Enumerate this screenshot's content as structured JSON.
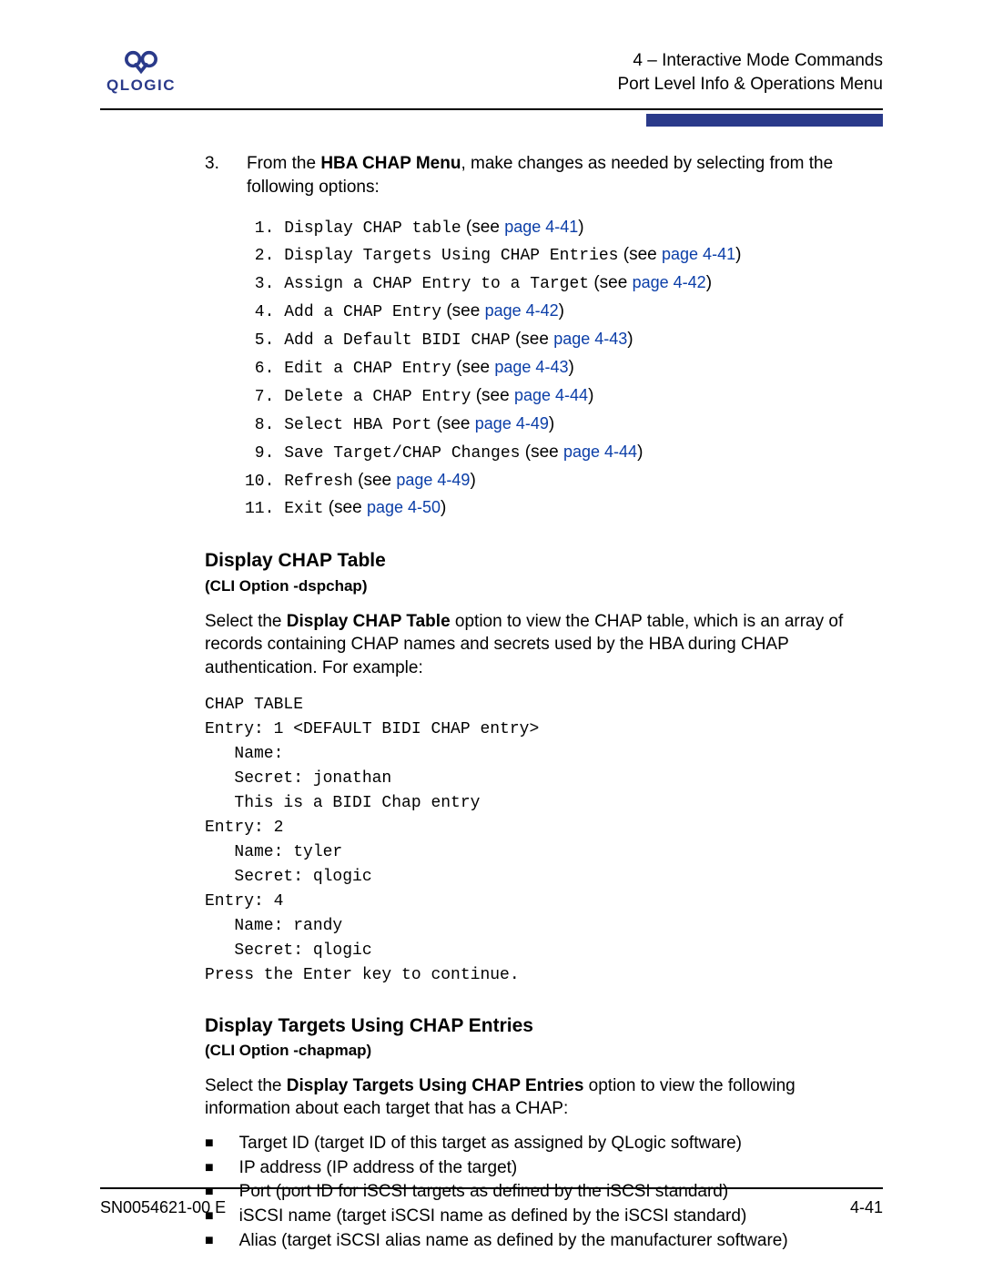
{
  "colors": {
    "brand": "#2a3a8a",
    "link": "#0b3ea8",
    "text": "#000000",
    "bg": "#ffffff"
  },
  "logo": {
    "text": "QLOGIC"
  },
  "header": {
    "line1": "4 – Interactive Mode Commands",
    "line2": "Port Level Info & Operations Menu"
  },
  "step": {
    "number": "3.",
    "text_pre": "From the ",
    "bold": "HBA CHAP Menu",
    "text_post": ", make changes as needed by selecting from the following options:"
  },
  "menu_items": [
    {
      "num": " 1.",
      "label": "Display CHAP table",
      "see": " (see ",
      "page": "page 4-41",
      "close": ")"
    },
    {
      "num": " 2.",
      "label": "Display Targets Using CHAP Entries",
      "see": " (see ",
      "page": "page 4-41",
      "close": ")"
    },
    {
      "num": " 3.",
      "label": "Assign a CHAP Entry to a Target",
      "see": " (see ",
      "page": "page 4-42",
      "close": ")"
    },
    {
      "num": " 4.",
      "label": "Add a CHAP Entry",
      "see": " (see ",
      "page": "page 4-42",
      "close": ")"
    },
    {
      "num": " 5.",
      "label": "Add a Default BIDI CHAP",
      "see": " (see ",
      "page": "page 4-43",
      "close": ")"
    },
    {
      "num": " 6.",
      "label": "Edit a CHAP Entry",
      "see": " (see ",
      "page": "page 4-43",
      "close": ")"
    },
    {
      "num": " 7.",
      "label": "Delete a CHAP Entry",
      "see": " (see ",
      "page": "page 4-44",
      "close": ")"
    },
    {
      "num": " 8.",
      "label": "Select HBA Port",
      "see": " (see ",
      "page": "page 4-49",
      "close": ")"
    },
    {
      "num": " 9.",
      "label": "Save Target/CHAP Changes",
      "see": " (see ",
      "page": "page 4-44",
      "close": ")"
    },
    {
      "num": "10.",
      "label": "Refresh",
      "see": " (see ",
      "page": "page 4-49",
      "close": ")"
    },
    {
      "num": "11.",
      "label": "Exit",
      "see": " (see ",
      "page": "page 4-50",
      "close": ")"
    }
  ],
  "section1": {
    "title": "Display CHAP Table",
    "subtitle": "(CLI Option -dspchap)",
    "para_pre": "Select the ",
    "para_bold": "Display CHAP Table",
    "para_post": " option to view the CHAP table, which is an array of records containing CHAP names and secrets used by the HBA during CHAP authentication. For example:",
    "code": "CHAP TABLE\nEntry: 1 <DEFAULT BIDI CHAP entry>\n   Name:\n   Secret: jonathan\n   This is a BIDI Chap entry\nEntry: 2\n   Name: tyler\n   Secret: qlogic\nEntry: 4\n   Name: randy\n   Secret: qlogic\nPress the Enter key to continue."
  },
  "section2": {
    "title": "Display Targets Using CHAP Entries",
    "subtitle": "(CLI Option -chapmap)",
    "para_pre": "Select the ",
    "para_bold": "Display Targets Using CHAP Entries",
    "para_post": " option to view the following information about each target that has a CHAP:",
    "bullets": [
      "Target ID (target ID of this target as assigned by QLogic software)",
      "IP address (IP address of the target)",
      "Port (port ID for iSCSI targets as defined by the iSCSI standard)",
      "iSCSI name (target iSCSI name as defined by the iSCSI standard)",
      "Alias (target iSCSI alias name as defined by the manufacturer software)"
    ]
  },
  "footer": {
    "doc": "SN0054621-00 E",
    "page": "4-41"
  }
}
